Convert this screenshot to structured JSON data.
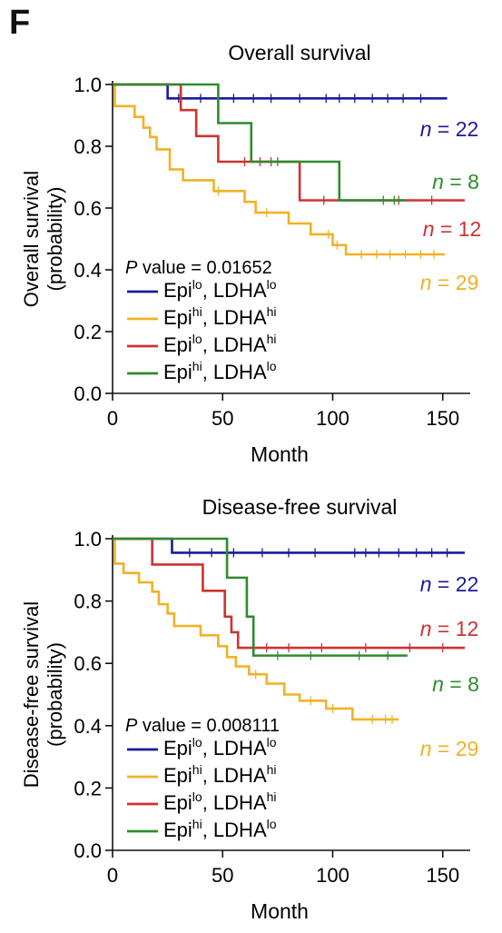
{
  "panel_label": "F",
  "chart_data": [
    {
      "type": "line",
      "subtype": "kaplan-meier",
      "title": "Overall survival",
      "xlabel": "Month",
      "ylabel_line1": "Overall survival",
      "ylabel_line2": "(probability)",
      "xlim": [
        0,
        160
      ],
      "ylim": [
        0,
        1
      ],
      "xticks": [
        "0",
        "50",
        "100",
        "150"
      ],
      "yticks": [
        "0.0",
        "0.2",
        "0.4",
        "0.6",
        "0.8",
        "1.0"
      ],
      "grid": false,
      "pvalue_prefix": "P",
      "pvalue_text": " value = 0.01652",
      "legend_location": "lower-left",
      "series": [
        {
          "name": "Epi lo, LDHA lo",
          "epi": "lo",
          "ldha": "lo",
          "color": "#1a1a9c",
          "n_label": "n = 22",
          "steps": [
            [
              0,
              1.0
            ],
            [
              25,
              0.955
            ],
            [
              152,
              0.955
            ]
          ],
          "censors": [
            30,
            40,
            55,
            64,
            72,
            85,
            97,
            103,
            110,
            118,
            125,
            132,
            140
          ]
        },
        {
          "name": "Epi hi, LDHA hi",
          "epi": "hi",
          "ldha": "hi",
          "color": "#f2b126",
          "n_label": "n = 29",
          "steps": [
            [
              0,
              1.0
            ],
            [
              1,
              0.93
            ],
            [
              10,
              0.895
            ],
            [
              14,
              0.86
            ],
            [
              17,
              0.83
            ],
            [
              20,
              0.79
            ],
            [
              26,
              0.725
            ],
            [
              32,
              0.69
            ],
            [
              46,
              0.655
            ],
            [
              60,
              0.62
            ],
            [
              65,
              0.585
            ],
            [
              80,
              0.55
            ],
            [
              90,
              0.515
            ],
            [
              100,
              0.48
            ],
            [
              106,
              0.45
            ],
            [
              151,
              0.45
            ]
          ],
          "censors": [
            48,
            70,
            98,
            102,
            113,
            120,
            126,
            133,
            140,
            146
          ]
        },
        {
          "name": "Epi lo, LDHA hi",
          "epi": "lo",
          "ldha": "hi",
          "color": "#cc3333",
          "n_label": "n = 12",
          "steps": [
            [
              0,
              1.0
            ],
            [
              31,
              0.917
            ],
            [
              38,
              0.833
            ],
            [
              48,
              0.75
            ],
            [
              85,
              0.625
            ],
            [
              160,
              0.625
            ]
          ],
          "censors": [
            60,
            67,
            72,
            96,
            130,
            145
          ]
        },
        {
          "name": "Epi hi, LDHA lo",
          "epi": "hi",
          "ldha": "lo",
          "color": "#2e8b2e",
          "n_label": "n = 8",
          "steps": [
            [
              0,
              1.0
            ],
            [
              48,
              0.875
            ],
            [
              63,
              0.75
            ],
            [
              103,
              0.625
            ],
            [
              133,
              0.625
            ]
          ],
          "censors": [
            75,
            123,
            128
          ]
        }
      ],
      "n_labels_order": [
        "n = 22",
        "n = 8",
        "n = 12",
        "n = 29"
      ]
    },
    {
      "type": "line",
      "subtype": "kaplan-meier",
      "title": "Disease-free survival",
      "xlabel": "Month",
      "ylabel_line1": "Disease-free survival",
      "ylabel_line2": "(probability)",
      "xlim": [
        0,
        160
      ],
      "ylim": [
        0,
        1
      ],
      "xticks": [
        "0",
        "50",
        "100",
        "150"
      ],
      "yticks": [
        "0.0",
        "0.2",
        "0.4",
        "0.6",
        "0.8",
        "1.0"
      ],
      "grid": false,
      "pvalue_prefix": "P",
      "pvalue_text": " value = 0.008111",
      "legend_location": "lower-left",
      "series": [
        {
          "name": "Epi lo, LDHA lo",
          "epi": "lo",
          "ldha": "lo",
          "color": "#1a1a9c",
          "n_label": "n = 22",
          "steps": [
            [
              0,
              1.0
            ],
            [
              27,
              0.955
            ],
            [
              160,
              0.955
            ]
          ],
          "censors": [
            35,
            45,
            55,
            68,
            80,
            92,
            110,
            115,
            121,
            130,
            138,
            145,
            152
          ]
        },
        {
          "name": "Epi hi, LDHA hi",
          "epi": "hi",
          "ldha": "hi",
          "color": "#f2b126",
          "n_label": "n = 29",
          "steps": [
            [
              0,
              1.0
            ],
            [
              1,
              0.92
            ],
            [
              5,
              0.89
            ],
            [
              12,
              0.86
            ],
            [
              18,
              0.83
            ],
            [
              21,
              0.79
            ],
            [
              25,
              0.76
            ],
            [
              28,
              0.72
            ],
            [
              40,
              0.69
            ],
            [
              48,
              0.655
            ],
            [
              52,
              0.62
            ],
            [
              56,
              0.59
            ],
            [
              62,
              0.565
            ],
            [
              70,
              0.535
            ],
            [
              78,
              0.5
            ],
            [
              85,
              0.48
            ],
            [
              97,
              0.455
            ],
            [
              109,
              0.42
            ],
            [
              130,
              0.42
            ]
          ],
          "censors": [
            65,
            90,
            100,
            118,
            124,
            127
          ]
        },
        {
          "name": "Epi lo, LDHA hi",
          "epi": "lo",
          "ldha": "hi",
          "color": "#cc3333",
          "n_label": "n = 12",
          "steps": [
            [
              0,
              1.0
            ],
            [
              18,
              0.917
            ],
            [
              41,
              0.833
            ],
            [
              51,
              0.75
            ],
            [
              54,
              0.7
            ],
            [
              57,
              0.65
            ],
            [
              160,
              0.65
            ]
          ],
          "censors": [
            70,
            80,
            95,
            115,
            135,
            150
          ]
        },
        {
          "name": "Epi hi, LDHA lo",
          "epi": "hi",
          "ldha": "lo",
          "color": "#2e8b2e",
          "n_label": "n = 8",
          "steps": [
            [
              0,
              1.0
            ],
            [
              52,
              0.875
            ],
            [
              61,
              0.75
            ],
            [
              64,
              0.625
            ],
            [
              134,
              0.625
            ]
          ],
          "censors": [
            75,
            90,
            112,
            125
          ]
        }
      ],
      "n_labels_order": [
        "n = 22",
        "n = 12",
        "n = 8",
        "n = 29"
      ]
    }
  ]
}
